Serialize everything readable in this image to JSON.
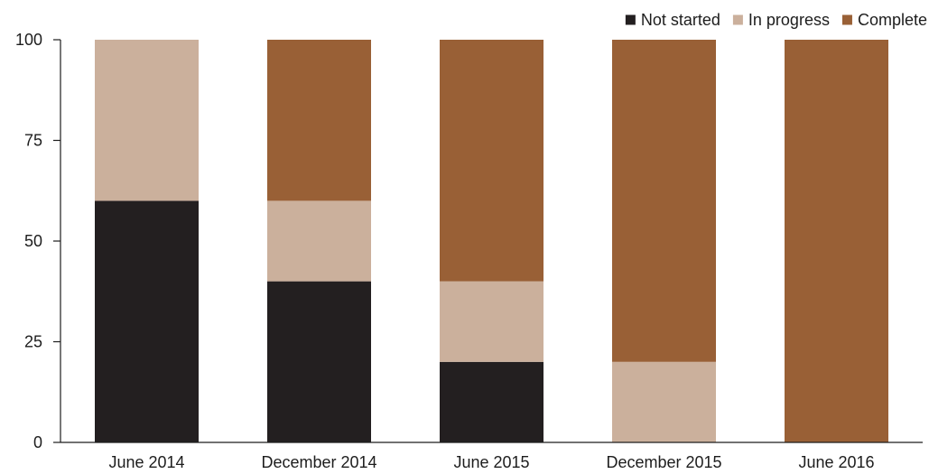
{
  "chart_data": {
    "type": "bar",
    "stacked": true,
    "categories": [
      "June 2014",
      "December 2014",
      "June 2015",
      "December 2015",
      "June 2016"
    ],
    "series": [
      {
        "name": "Not started",
        "color": "#231f20",
        "values": [
          60,
          40,
          20,
          0,
          0
        ]
      },
      {
        "name": "In progress",
        "color": "#cbb09c",
        "values": [
          40,
          20,
          20,
          20,
          0
        ]
      },
      {
        "name": "Complete",
        "color": "#996036",
        "values": [
          0,
          40,
          60,
          80,
          100
        ]
      }
    ],
    "ylim": [
      0,
      100
    ],
    "yticks": [
      0,
      25,
      50,
      75,
      100
    ],
    "grid": false,
    "legend_position": "top-right",
    "title": "",
    "xlabel": "",
    "ylabel": ""
  }
}
